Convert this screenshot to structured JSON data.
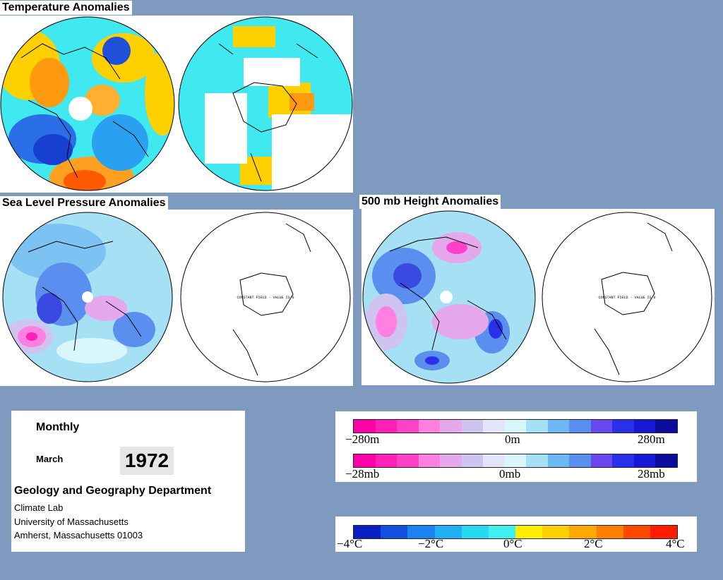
{
  "sections": {
    "temperature_title": "Temperature Anomalies",
    "slp_title": "Sea Level Pressure Anomalies",
    "height_title": "500 mb Height Anomalies"
  },
  "map_annotations": {
    "constant_field_slp": "CONSTANT FIELD - VALUE IS 0",
    "constant_field_height": "CONSTANT FIELD - VALUE IS 0"
  },
  "info": {
    "period": "Monthly",
    "month": "March",
    "year": "1972",
    "department": "Geology and Geography Department",
    "lab": "Climate Lab",
    "university": "University of Massachusetts",
    "address": "Amherst, Massachusetts 01003"
  },
  "legends": {
    "height": {
      "min": "−280m",
      "mid": "0m",
      "max": "280m"
    },
    "pressure": {
      "min": "−28mb",
      "mid": "0mb",
      "max": "28mb"
    },
    "temperature": {
      "t1": "−4°C",
      "t2": "−2°C",
      "t3": "0°C",
      "t4": "2°C",
      "t5": "4°C"
    }
  },
  "colors": {
    "background": "#7f9abf",
    "pressure_scale": [
      "#ff00a8",
      "#ff20b8",
      "#ff40c8",
      "#ff80e0",
      "#e6a8ec",
      "#cfc4f0",
      "#e4e4fa",
      "#d9f7fb",
      "#a6e0f5",
      "#6cb8f5",
      "#5a8ff0",
      "#6a48f0",
      "#2a30e8",
      "#1818d8",
      "#0c0c9c"
    ],
    "temperature_scale": [
      "#0b20c4",
      "#1450e0",
      "#1c82f0",
      "#22aff4",
      "#28d8ee",
      "#40f0f0",
      "#ffee00",
      "#ffd000",
      "#ffa800",
      "#ff8000",
      "#ff4800",
      "#ff1e00"
    ]
  }
}
